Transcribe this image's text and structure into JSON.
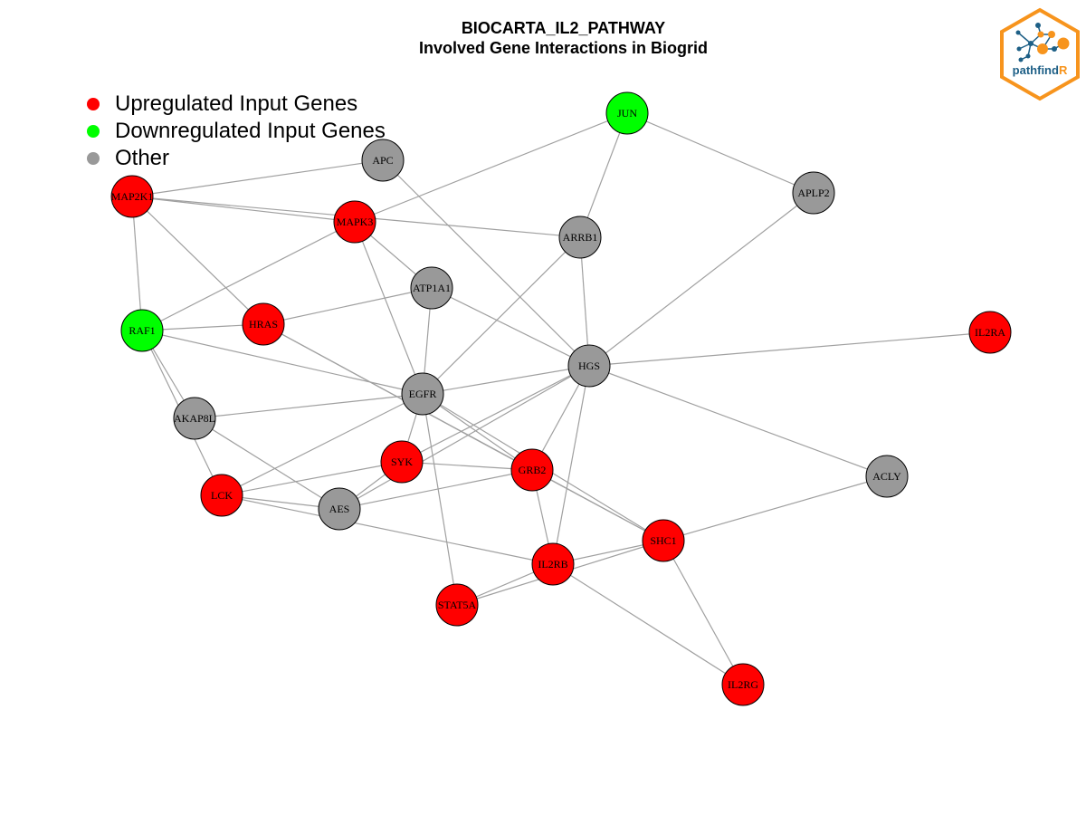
{
  "title": {
    "line1": "BIOCARTA_IL2_PATHWAY",
    "line2": "Involved Gene Interactions in Biogrid"
  },
  "legend": [
    {
      "label": "Upregulated Input Genes",
      "color": "#ff0000"
    },
    {
      "label": "Downregulated Input Genes",
      "color": "#00ff00"
    },
    {
      "label": "Other",
      "color": "#999999"
    }
  ],
  "colors": {
    "up": "#ff0000",
    "down": "#00ff00",
    "other": "#999999",
    "edge": "#a0a0a0",
    "logo_orange": "#f7941d",
    "logo_blue": "#1d5f86"
  },
  "logo": {
    "text_main": "pathfind",
    "text_accent": "R"
  },
  "network": {
    "nodes": [
      {
        "id": "JUN",
        "group": "down"
      },
      {
        "id": "APC",
        "group": "other"
      },
      {
        "id": "MAP2K1",
        "group": "up"
      },
      {
        "id": "APLP2",
        "group": "other"
      },
      {
        "id": "MAPK3",
        "group": "up"
      },
      {
        "id": "ARRB1",
        "group": "other"
      },
      {
        "id": "ATP1A1",
        "group": "other"
      },
      {
        "id": "RAF1",
        "group": "down"
      },
      {
        "id": "HRAS",
        "group": "up"
      },
      {
        "id": "IL2RA",
        "group": "up"
      },
      {
        "id": "HGS",
        "group": "other"
      },
      {
        "id": "EGFR",
        "group": "other"
      },
      {
        "id": "AKAP8L",
        "group": "other"
      },
      {
        "id": "SYK",
        "group": "up"
      },
      {
        "id": "GRB2",
        "group": "up"
      },
      {
        "id": "ACLY",
        "group": "other"
      },
      {
        "id": "LCK",
        "group": "up"
      },
      {
        "id": "AES",
        "group": "other"
      },
      {
        "id": "SHC1",
        "group": "up"
      },
      {
        "id": "IL2RB",
        "group": "up"
      },
      {
        "id": "STAT5A",
        "group": "up"
      },
      {
        "id": "IL2RG",
        "group": "up"
      }
    ],
    "edges": [
      [
        "JUN",
        "MAPK3"
      ],
      [
        "JUN",
        "ARRB1"
      ],
      [
        "JUN",
        "APLP2"
      ],
      [
        "APC",
        "MAP2K1"
      ],
      [
        "APC",
        "HGS"
      ],
      [
        "MAP2K1",
        "MAPK3"
      ],
      [
        "MAP2K1",
        "ARRB1"
      ],
      [
        "MAP2K1",
        "RAF1"
      ],
      [
        "MAP2K1",
        "HRAS"
      ],
      [
        "MAPK3",
        "RAF1"
      ],
      [
        "MAPK3",
        "ATP1A1"
      ],
      [
        "MAPK3",
        "EGFR"
      ],
      [
        "ARRB1",
        "HGS"
      ],
      [
        "ARRB1",
        "EGFR"
      ],
      [
        "APLP2",
        "HGS"
      ],
      [
        "ATP1A1",
        "HRAS"
      ],
      [
        "ATP1A1",
        "EGFR"
      ],
      [
        "ATP1A1",
        "HGS"
      ],
      [
        "RAF1",
        "HRAS"
      ],
      [
        "RAF1",
        "EGFR"
      ],
      [
        "RAF1",
        "AKAP8L"
      ],
      [
        "RAF1",
        "LCK"
      ],
      [
        "HRAS",
        "GRB2"
      ],
      [
        "HRAS",
        "SHC1"
      ],
      [
        "HGS",
        "IL2RA"
      ],
      [
        "HGS",
        "EGFR"
      ],
      [
        "HGS",
        "ACLY"
      ],
      [
        "HGS",
        "SYK"
      ],
      [
        "HGS",
        "AES"
      ],
      [
        "HGS",
        "GRB2"
      ],
      [
        "HGS",
        "IL2RB"
      ],
      [
        "EGFR",
        "AKAP8L"
      ],
      [
        "EGFR",
        "LCK"
      ],
      [
        "EGFR",
        "SYK"
      ],
      [
        "EGFR",
        "GRB2"
      ],
      [
        "EGFR",
        "SHC1"
      ],
      [
        "EGFR",
        "STAT5A"
      ],
      [
        "AKAP8L",
        "AES"
      ],
      [
        "SYK",
        "LCK"
      ],
      [
        "SYK",
        "AES"
      ],
      [
        "SYK",
        "GRB2"
      ],
      [
        "GRB2",
        "AES"
      ],
      [
        "GRB2",
        "IL2RB"
      ],
      [
        "GRB2",
        "SHC1"
      ],
      [
        "LCK",
        "AES"
      ],
      [
        "LCK",
        "IL2RB"
      ],
      [
        "ACLY",
        "SHC1"
      ],
      [
        "SHC1",
        "IL2RB"
      ],
      [
        "SHC1",
        "STAT5A"
      ],
      [
        "SHC1",
        "IL2RG"
      ],
      [
        "IL2RB",
        "STAT5A"
      ],
      [
        "IL2RB",
        "IL2RG"
      ]
    ]
  }
}
